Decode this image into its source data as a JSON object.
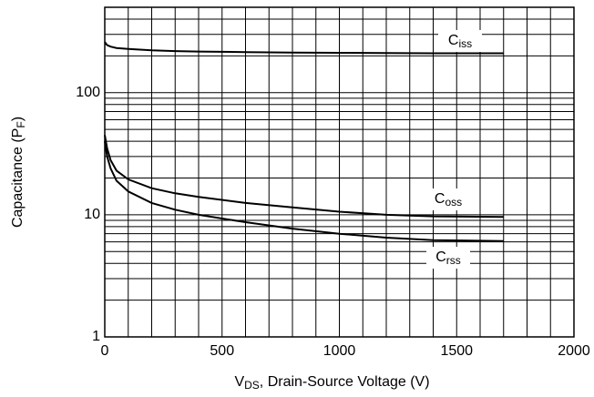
{
  "chart_data": {
    "type": "line",
    "ylabel_parts": [
      "Capacitance (P",
      "F",
      ")"
    ],
    "xlabel_parts": [
      "V",
      "DS",
      ", Drain-Source Voltage (V)"
    ],
    "x": [
      0,
      10,
      25,
      50,
      100,
      200,
      300,
      400,
      600,
      800,
      1000,
      1200,
      1400,
      1700
    ],
    "series": [
      {
        "name": "Ciss",
        "name_parts": [
          "C",
          "iss"
        ],
        "color": "#000000",
        "values": [
          260,
          245,
          238,
          232,
          228,
          222,
          219,
          217,
          215,
          213,
          212,
          211,
          210,
          210
        ]
      },
      {
        "name": "Coss",
        "name_parts": [
          "C",
          "oss"
        ],
        "color": "#000000",
        "values": [
          45,
          35,
          28,
          23,
          19.5,
          16.5,
          15,
          14,
          12.5,
          11.5,
          10.6,
          10,
          9.7,
          9.6
        ]
      },
      {
        "name": "Crss",
        "name_parts": [
          "C",
          "rss"
        ],
        "color": "#000000",
        "values": [
          40,
          30,
          24,
          19,
          15.5,
          12.5,
          11,
          10,
          8.7,
          7.7,
          7,
          6.5,
          6.2,
          6.1
        ]
      }
    ],
    "xlim": [
      0,
      2000
    ],
    "xticks": [
      0,
      500,
      1000,
      1500,
      2000
    ],
    "xgrid": [
      100,
      200,
      300,
      400,
      600,
      700,
      800,
      900,
      1100,
      1200,
      1300,
      1400,
      1600,
      1700,
      1800,
      1900
    ],
    "ylim": [
      1,
      500
    ],
    "yscale": "log",
    "yticks": [
      1,
      10,
      100
    ],
    "ygrid": [
      2,
      3,
      4,
      5,
      6,
      7,
      8,
      9,
      20,
      30,
      40,
      50,
      60,
      70,
      80,
      90,
      200,
      300,
      400,
      500
    ],
    "grid": true
  }
}
